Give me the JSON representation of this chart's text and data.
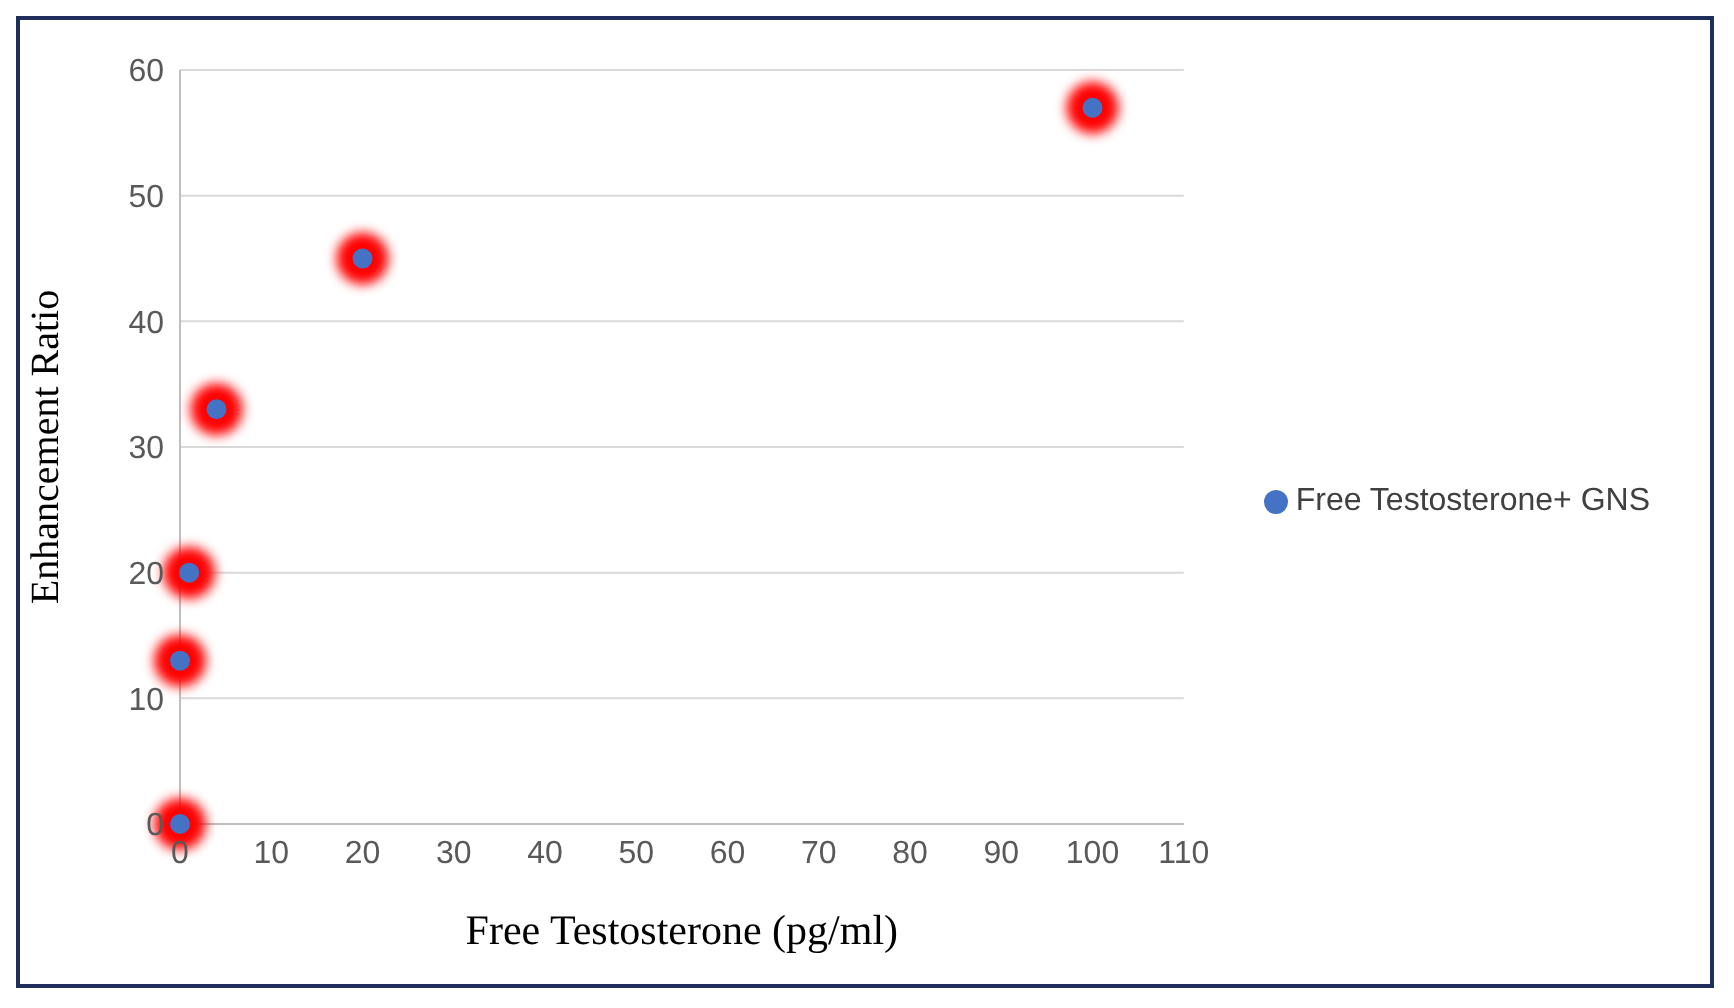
{
  "chart_data": {
    "type": "scatter",
    "xlabel": "Free Testosterone (pg/ml)",
    "ylabel": "Enhancement  Ratio",
    "x": [
      0,
      0,
      1,
      4,
      20,
      100
    ],
    "series": [
      {
        "name": "Free Testosterone+ GNS",
        "color": "#4472c4",
        "values": [
          0,
          13,
          20,
          33,
          45,
          57
        ]
      }
    ],
    "xlim": [
      0,
      110
    ],
    "xticks": [
      0,
      10,
      20,
      30,
      40,
      50,
      60,
      70,
      80,
      90,
      100,
      110
    ],
    "ylim": [
      0,
      60
    ],
    "yticks": [
      0,
      10,
      20,
      30,
      40,
      50,
      60
    ],
    "grid": "y",
    "legend": "right",
    "marker": "circle"
  }
}
